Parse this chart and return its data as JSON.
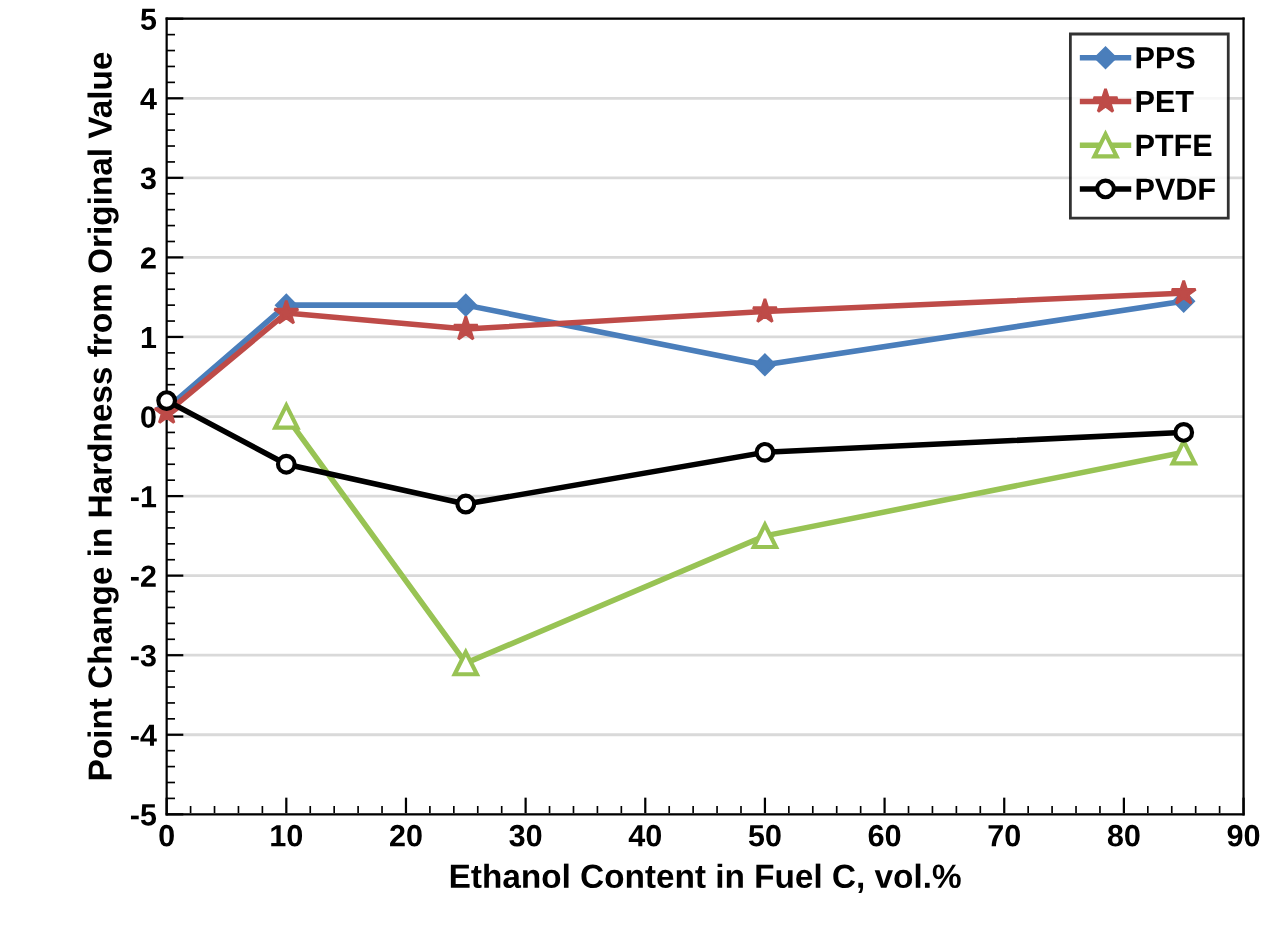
{
  "chart_data": {
    "type": "line",
    "xlabel": "Ethanol Content in Fuel C, vol.%",
    "ylabel": "Point Change in Hardness from Original Value",
    "x": [
      0,
      10,
      25,
      50,
      85
    ],
    "series": [
      {
        "name": "PPS",
        "color": "#4a7ebb",
        "marker": "diamond",
        "values": [
          0.1,
          1.4,
          1.4,
          0.65,
          1.45
        ]
      },
      {
        "name": "PET",
        "color": "#be4b48",
        "marker": "star",
        "values": [
          0.05,
          1.3,
          1.1,
          1.32,
          1.55
        ]
      },
      {
        "name": "PTFE",
        "color": "#98c354",
        "marker": "triangle",
        "values": [
          null,
          0.0,
          -3.1,
          -1.5,
          -0.45
        ]
      },
      {
        "name": "PVDF",
        "color": "#000000",
        "marker": "circle",
        "values": [
          0.2,
          -0.6,
          -1.1,
          -0.45,
          -0.2
        ]
      }
    ],
    "xlim": [
      0,
      90
    ],
    "xticks": [
      0,
      10,
      20,
      30,
      40,
      50,
      60,
      70,
      80,
      90
    ],
    "ylim": [
      -5,
      5
    ],
    "yticks": [
      -5,
      -4,
      -3,
      -2,
      -1,
      0,
      1,
      2,
      3,
      4,
      5
    ],
    "grid": "y",
    "legend": "top right",
    "line_style": "solid"
  }
}
